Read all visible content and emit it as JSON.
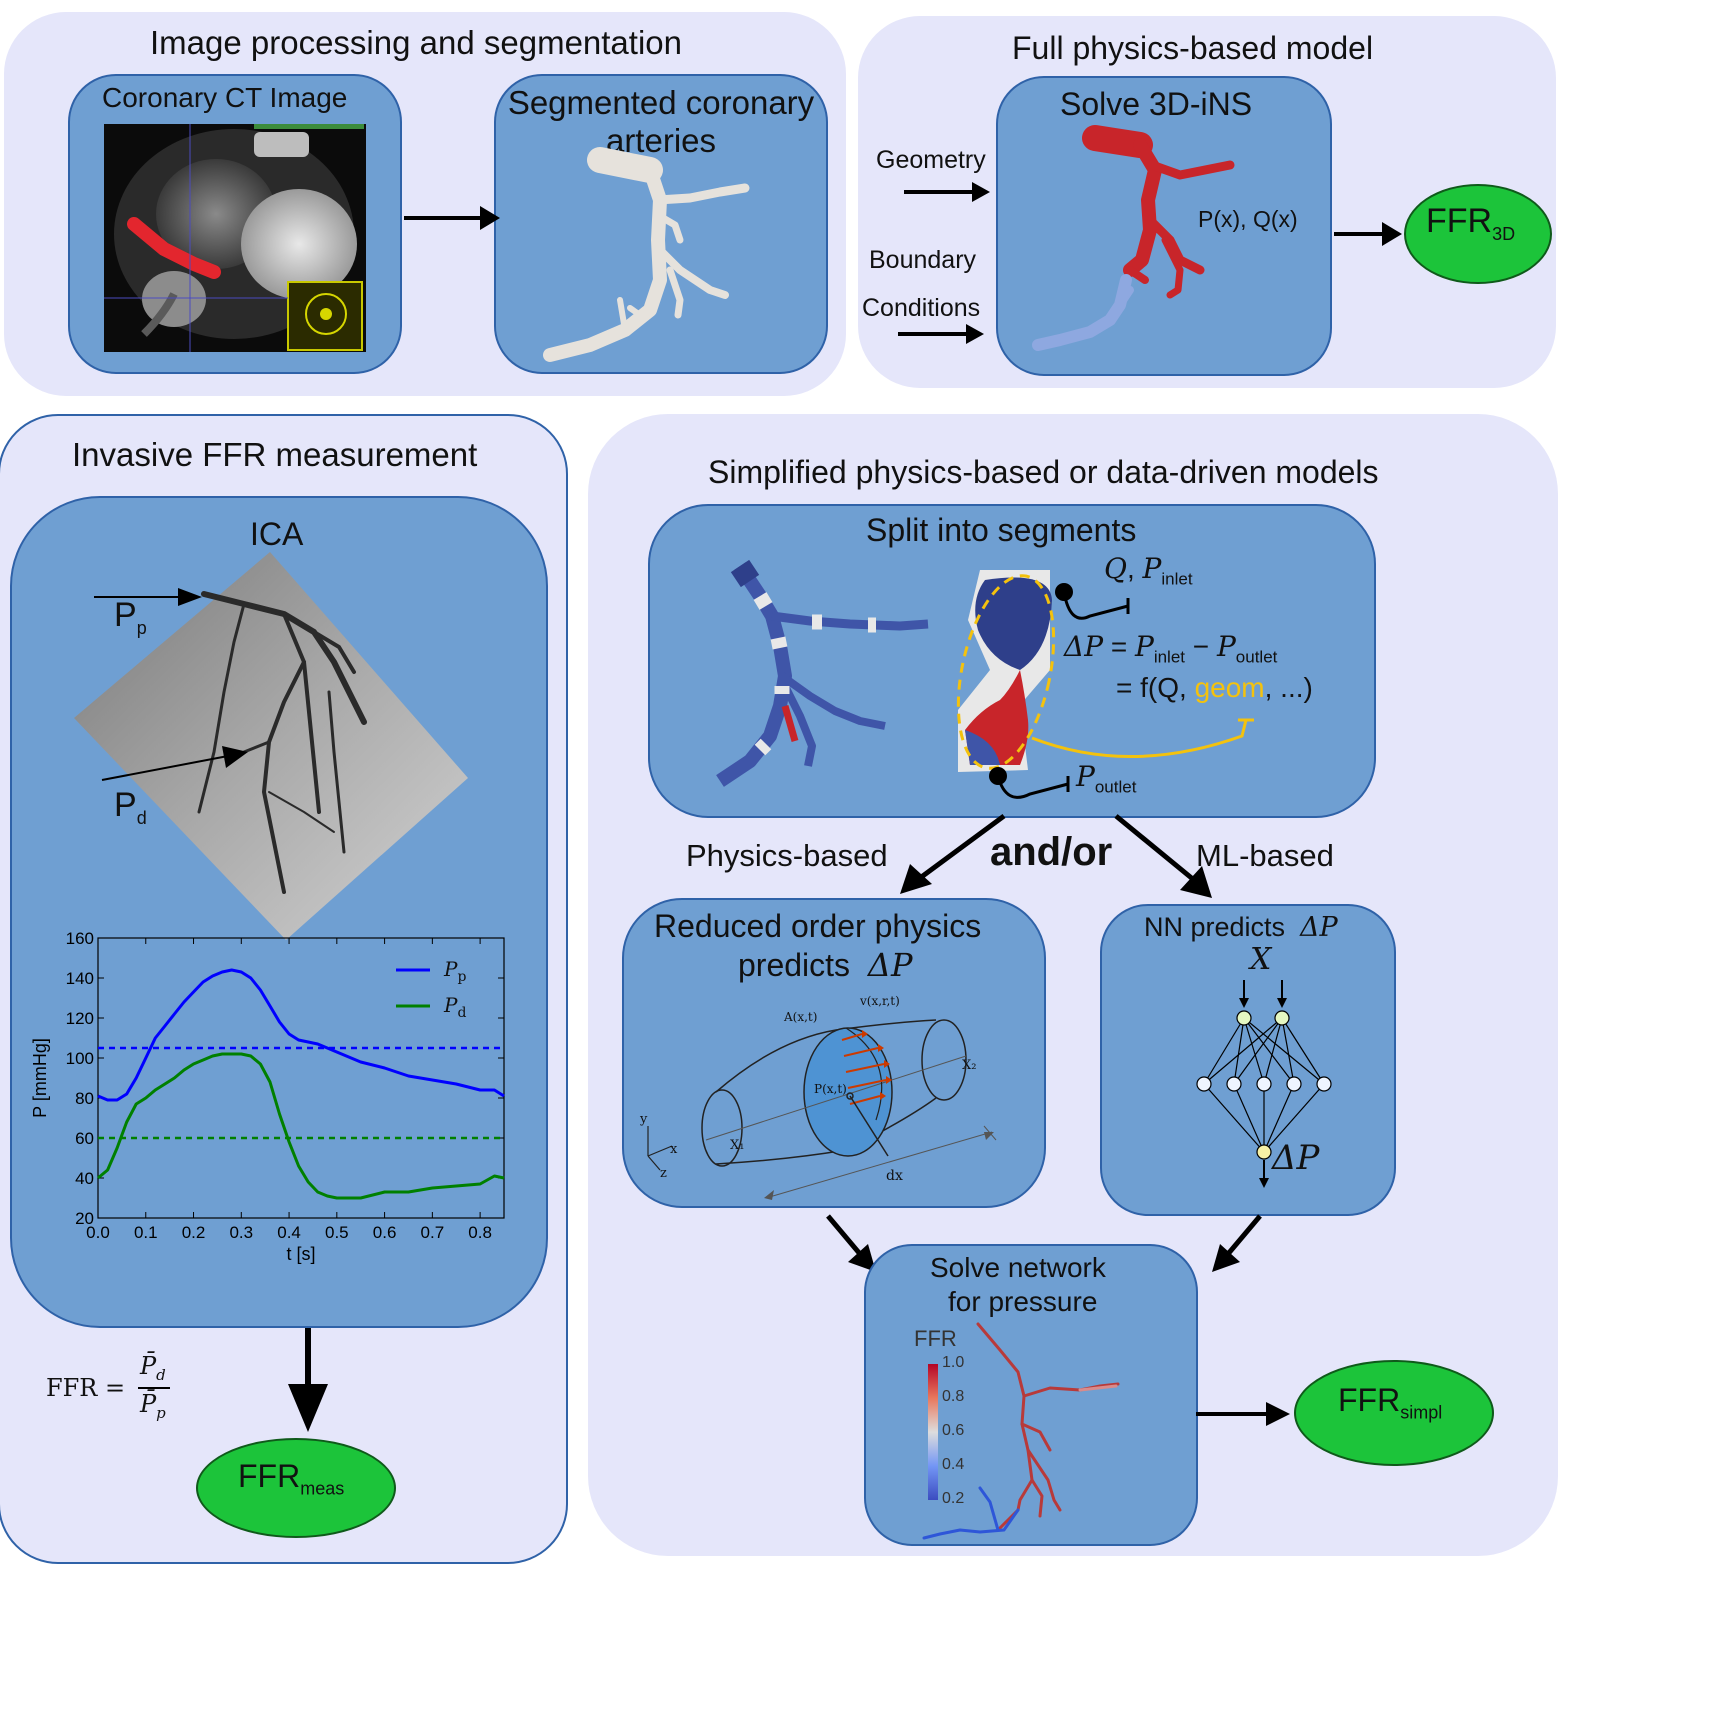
{
  "panels": {
    "image_processing": {
      "title": "Image processing and segmentation",
      "ct_title": "Coronary CT Image",
      "seg_title": "Segmented coronary arteries"
    },
    "full_physics": {
      "title": "Full physics-based model",
      "box_title": "Solve 3D-iNS",
      "input_geometry": "Geometry",
      "input_bc_line1": "Boundary",
      "input_bc_line2": "Conditions",
      "px_qx": "P(x), Q(x)",
      "ffr_main": "FFR",
      "ffr_sub": "3D"
    },
    "invasive": {
      "title": "Invasive FFR measurement",
      "ica_title": "ICA",
      "pp_main": "P",
      "pp_sub": "p",
      "pd_main": "P",
      "pd_sub": "d",
      "formula_lhs": "FFR =",
      "formula_num": "P̄",
      "formula_num_sub": "d",
      "formula_den": "P̄",
      "formula_den_sub": "p",
      "ffr_main": "FFR",
      "ffr_sub": "meas"
    },
    "simplified": {
      "title": "Simplified physics-based or data-driven models",
      "split_title": "Split into segments",
      "q_label": "Q",
      "p_inlet_main": "P",
      "p_inlet_sub": "inlet",
      "eq_line1_dp": "ΔP",
      "eq_line1_eq": "=",
      "eq_line1_pin": "P",
      "eq_line1_pin_sub": "inlet",
      "eq_line1_minus": "−",
      "eq_line1_pout": "P",
      "eq_line1_pout_sub": "outlet",
      "eq_line2_prefix": "= f(Q, ",
      "eq_line2_geom": "geom",
      "eq_line2_suffix": ", ...)",
      "p_outlet_main": "P",
      "p_outlet_sub": "outlet",
      "physics_based": "Physics-based",
      "and_or": "and/or",
      "ml_based": "ML-based",
      "rom_title_line1": "Reduced order physics",
      "rom_title_line2": "predicts",
      "rom_dp": "ΔP",
      "rom_labels": {
        "a": "A(x,t)",
        "v": "v(x,r,t)",
        "p": "P(x,t)",
        "x1": "X₁",
        "x2": "X₂",
        "dx": "dx",
        "y": "y",
        "x": "x",
        "z": "z"
      },
      "nn_title": "NN predicts",
      "nn_dp": "ΔP",
      "nn_input": "X",
      "nn_output": "ΔP",
      "network_title_line1": "Solve network",
      "network_title_line2": "for pressure",
      "colorbar_title": "FFR",
      "colorbar_ticks": [
        "1.0",
        "0.8",
        "0.6",
        "0.4",
        "0.2"
      ],
      "ffr_main": "FFR",
      "ffr_sub": "simpl"
    }
  },
  "colors": {
    "panel_bg": "#e5e6fa",
    "box_bg": "#6f9fd2",
    "box_border": "#2f62a8",
    "ffr_green": "#1cc43a",
    "geom_yellow": "#f4c20d",
    "artery_red": "#c8252a",
    "artery_blue": "#3f55a8"
  },
  "chart_data": {
    "type": "line",
    "title": "",
    "xlabel": "t [s]",
    "ylabel": "P [mmHg]",
    "xlim": [
      0.0,
      0.85
    ],
    "ylim": [
      20,
      160
    ],
    "xticks": [
      "0.0",
      "0.1",
      "0.2",
      "0.3",
      "0.4",
      "0.5",
      "0.6",
      "0.7",
      "0.8"
    ],
    "yticks": [
      "20",
      "40",
      "60",
      "80",
      "100",
      "120",
      "140",
      "160"
    ],
    "legend_position": "top-right",
    "series": [
      {
        "name": "Pp",
        "name_main": "P",
        "name_sub": "p",
        "color": "#0000ff",
        "x": [
          0.0,
          0.02,
          0.04,
          0.06,
          0.08,
          0.1,
          0.12,
          0.14,
          0.16,
          0.18,
          0.2,
          0.22,
          0.24,
          0.26,
          0.28,
          0.3,
          0.32,
          0.34,
          0.36,
          0.38,
          0.4,
          0.42,
          0.44,
          0.46,
          0.48,
          0.5,
          0.55,
          0.6,
          0.65,
          0.7,
          0.75,
          0.8,
          0.83,
          0.85
        ],
        "y": [
          81,
          79,
          79,
          82,
          90,
          100,
          110,
          116,
          122,
          128,
          133,
          138,
          141,
          143,
          144,
          143,
          140,
          134,
          126,
          118,
          112,
          109,
          108,
          107,
          105,
          103,
          98,
          95,
          91,
          89,
          87,
          84,
          84,
          81
        ]
      },
      {
        "name": "Pd",
        "name_main": "P",
        "name_sub": "d",
        "color": "#008000",
        "x": [
          0.0,
          0.02,
          0.04,
          0.06,
          0.08,
          0.1,
          0.12,
          0.14,
          0.16,
          0.18,
          0.2,
          0.22,
          0.24,
          0.26,
          0.28,
          0.3,
          0.32,
          0.34,
          0.36,
          0.38,
          0.4,
          0.42,
          0.44,
          0.46,
          0.48,
          0.5,
          0.52,
          0.55,
          0.6,
          0.65,
          0.7,
          0.75,
          0.8,
          0.83,
          0.85
        ],
        "y": [
          40,
          44,
          55,
          68,
          77,
          80,
          84,
          87,
          90,
          94,
          97,
          99,
          101,
          102,
          102,
          102,
          101,
          97,
          88,
          72,
          58,
          46,
          38,
          33,
          31,
          30,
          30,
          30,
          33,
          33,
          35,
          36,
          37,
          41,
          40
        ]
      },
      {
        "name": "",
        "color": "#0000ff",
        "dashed": true,
        "x": [
          0.0,
          0.85
        ],
        "y": [
          105,
          105
        ]
      },
      {
        "name": "",
        "color": "#008000",
        "dashed": true,
        "x": [
          0.0,
          0.85
        ],
        "y": [
          60,
          60
        ]
      }
    ]
  }
}
